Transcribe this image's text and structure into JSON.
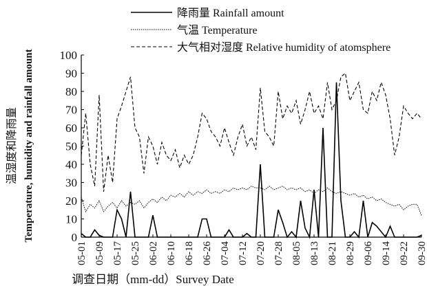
{
  "chart_data": {
    "type": "line",
    "x_label": "调查日期（mm-dd）Survey Date",
    "y_label": [
      "温湿度和降雨量",
      "Temperature, humidity and rainfall amount"
    ],
    "categories": [
      "05-01",
      null,
      null,
      null,
      "05-09",
      null,
      null,
      null,
      "05-17",
      null,
      null,
      null,
      "05-25",
      null,
      null,
      null,
      "06-02",
      null,
      null,
      null,
      "06-10",
      null,
      null,
      null,
      "06-18",
      null,
      null,
      null,
      "06-26",
      null,
      null,
      null,
      "07-04",
      null,
      null,
      null,
      "07-12",
      null,
      null,
      null,
      "07-20",
      null,
      null,
      null,
      "07-28",
      null,
      null,
      null,
      "08-05",
      null,
      null,
      null,
      "08-13",
      null,
      null,
      null,
      "08-21",
      null,
      null,
      null,
      "08-29",
      null,
      null,
      null,
      "09-06",
      null,
      null,
      null,
      "09-14",
      null,
      null,
      null,
      "09-22",
      null,
      null,
      null,
      "09-30"
    ],
    "ylim": [
      0,
      100
    ],
    "yticks": [
      0,
      10,
      20,
      30,
      40,
      50,
      60,
      70,
      80,
      90,
      100
    ],
    "series": [
      {
        "name": "降雨量 Rainfall amount",
        "color": "#000000",
        "line_style": "solid",
        "values": [
          2,
          0,
          0,
          4,
          1,
          0,
          0,
          0,
          15,
          10,
          0,
          25,
          0,
          0,
          0,
          0,
          12,
          0,
          0,
          0,
          0,
          0,
          0,
          0,
          0,
          0,
          0,
          10,
          10,
          0,
          0,
          0,
          0,
          4,
          0,
          0,
          0,
          2,
          0,
          0,
          40,
          0,
          0,
          0,
          15,
          8,
          0,
          3,
          0,
          20,
          5,
          0,
          26,
          0,
          60,
          0,
          0,
          85,
          20,
          0,
          0,
          3,
          0,
          20,
          0,
          8,
          6,
          3,
          0,
          6,
          0,
          0,
          0,
          0,
          0,
          0,
          1
        ]
      },
      {
        "name": "气温 Temperature",
        "color": "#000000",
        "line_style": "dotted",
        "values": [
          22,
          14,
          18,
          16,
          20,
          14,
          17,
          19,
          16,
          20,
          17,
          19,
          18,
          20,
          16,
          19,
          21,
          19,
          22,
          20,
          23,
          22,
          24,
          22,
          25,
          23,
          25,
          24,
          26,
          24,
          25,
          24,
          26,
          25,
          27,
          26,
          27,
          26,
          28,
          27,
          27,
          26,
          28,
          26,
          27,
          28,
          26,
          27,
          26,
          27,
          25,
          26,
          24,
          26,
          25,
          27,
          25,
          24,
          25,
          24,
          23,
          24,
          22,
          23,
          21,
          22,
          20,
          21,
          19,
          18,
          17,
          18,
          15,
          17,
          18,
          18,
          12
        ]
      },
      {
        "name": "大气相对湿度 Relative humidity of atomsphere",
        "color": "#000000",
        "line_style": "dashed",
        "values": [
          45,
          68,
          40,
          28,
          78,
          25,
          45,
          30,
          65,
          72,
          80,
          88,
          60,
          55,
          35,
          55,
          50,
          40,
          52,
          45,
          42,
          48,
          38,
          45,
          40,
          45,
          55,
          68,
          65,
          58,
          55,
          50,
          60,
          52,
          45,
          55,
          62,
          50,
          55,
          48,
          82,
          58,
          55,
          50,
          80,
          65,
          72,
          68,
          75,
          62,
          70,
          80,
          68,
          72,
          65,
          85,
          70,
          75,
          88,
          90,
          75,
          80,
          85,
          70,
          68,
          80,
          75,
          85,
          78,
          65,
          45,
          55,
          72,
          68,
          65,
          68,
          65
        ]
      }
    ]
  }
}
